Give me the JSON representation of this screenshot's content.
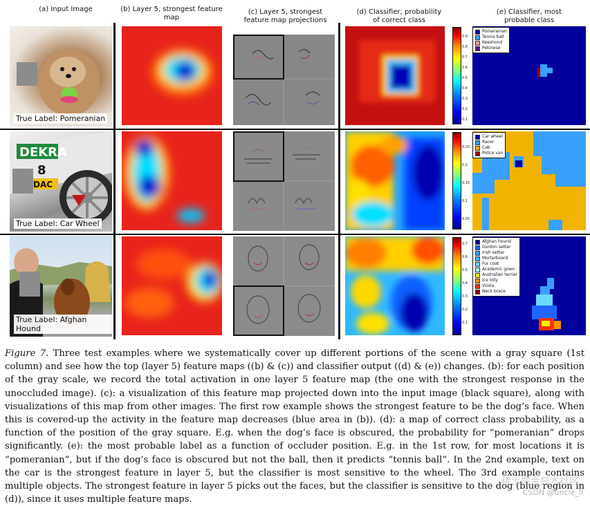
{
  "figure": {
    "column_headers": {
      "a": "(a) Input Image",
      "b": "(b) Layer 5, strongest feature map",
      "c_line1": "(c) Layer 5, strongest",
      "c_line2": "feature map projections",
      "d_line1": "(d) Classifier, probability",
      "d_line2": "of correct class",
      "e_line1": "(e) Classifier, most",
      "e_line2": "probable class"
    },
    "rows": [
      {
        "true_label": "True Label: Pomeranian",
        "colorbar_ticks": [
          "0.9",
          "0.8",
          "0.7",
          "0.6",
          "0.5",
          "0.4",
          "0.3",
          "0.2",
          "0.1"
        ],
        "legend": [
          {
            "label": "Pomeranian",
            "color": "#0000a0"
          },
          {
            "label": "Tennis ball",
            "color": "#39a0ff"
          },
          {
            "label": "Keeshond",
            "color": "#ff9f9f"
          },
          {
            "label": "Pekinese",
            "color": "#5a1a8a"
          }
        ]
      },
      {
        "true_label": "True Label: Car Wheel",
        "colorbar_ticks": [
          "0.25",
          "0.2",
          "0.15",
          "0.1",
          "0.05"
        ],
        "legend": [
          {
            "label": "Car wheel",
            "color": "#0000a0"
          },
          {
            "label": "Racer",
            "color": "#39a0ff"
          },
          {
            "label": "Cab",
            "color": "#f0b400"
          },
          {
            "label": "Police van",
            "color": "#a00000"
          }
        ]
      },
      {
        "true_label": "True Label: Afghan Hound",
        "colorbar_ticks": [
          "0.7",
          "0.6",
          "0.5",
          "0.4",
          "0.3",
          "0.2",
          "0.1"
        ],
        "legend": [
          {
            "label": "Afghan hound",
            "color": "#0000a0"
          },
          {
            "label": "Gordon setter",
            "color": "#1e64ff"
          },
          {
            "label": "Irish setter",
            "color": "#39a0ff"
          },
          {
            "label": "Mortarboard",
            "color": "#39c0ff"
          },
          {
            "label": "Fur coat",
            "color": "#69d8ff"
          },
          {
            "label": "Academic gown",
            "color": "#a0ffff"
          },
          {
            "label": "Australian terrier",
            "color": "#f0f000"
          },
          {
            "label": "Ice lolly",
            "color": "#ff9000"
          },
          {
            "label": "Vizsla",
            "color": "#ff3000"
          },
          {
            "label": "Neck brace",
            "color": "#800000"
          }
        ]
      }
    ],
    "row1_photo_text": [
      "DEKRA",
      "8",
      "DAC"
    ]
  },
  "caption": {
    "figure_label": "Figure 7.",
    "text": "Three test examples where we systematically cover up different portions of the scene with a gray square (1st column) and see how the top (layer 5) feature maps ((b) & (c)) and classifier output ((d) & (e)) changes. (b): for each position of the gray scale, we record the total activation in one layer 5 feature map (the one with the strongest response in the unoccluded image). (c): a visualization of this feature map projected down into the input image (black square), along with visualizations of this map from other images. The first row example shows the strongest feature to be the dog’s face. When this is covered-up the activity in the feature map decreases (blue area in (b)). (d): a map of correct class probability, as a function of the position of the gray square. E.g. when the dog’s face is obscured, the probability for “pomeranian” drops significantly. (e): the most probable label as a function of occluder position. E.g. in the 1st row, for most locations it is “pomeranian”, but if the dog’s face is obscured but not the ball, then it predicts “tennis ball”. In the 2nd example, text on the car is the strongest feature in layer 5, but the classifier is most sensitive to the wheel. The 3rd example contains multiple objects. The strongest feature in layer 5 picks out the faces, but the classifier is sensitive to the dog (blue region in (d)), since it uses multiple feature maps."
  },
  "watermark": {
    "text": "CSDN @uncle_ll",
    "overlay": "稀土掘金技术社区"
  }
}
